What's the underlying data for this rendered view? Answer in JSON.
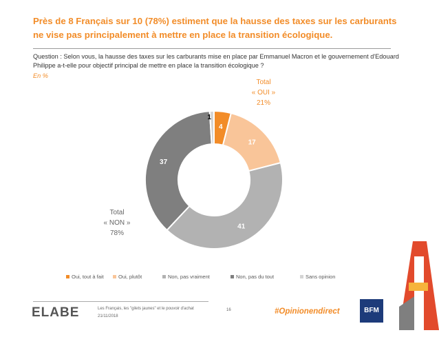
{
  "title": "Près de 8 Français sur 10 (78%) estiment que la hausse des taxes sur les carburants ne vise pas principalement à mettre en place la transition écologique.",
  "question": "Question : Selon vous, la hausse des taxes sur les carburants mise en place par Emmanuel Macron et le gouvernement d'Edouard Philippe a-t-elle pour objectif principal de mettre en place la transition écologique ?",
  "unit": "En %",
  "footer": {
    "logo": "ELABE",
    "study": "Les Français, les \"gilets jaunes\" et le pouvoir d'achat",
    "date": "21/11/2018",
    "page": "16",
    "hashtag": "#Opinionendirect",
    "partner": "BFM TV"
  },
  "chart_data": {
    "type": "pie",
    "subtype": "donut",
    "categories": [
      "Oui, tout à fait",
      "Oui, plutôt",
      "Non, pas vraiment",
      "Non, pas du tout",
      "Sans opinion"
    ],
    "values": [
      4,
      17,
      41,
      37,
      1
    ],
    "colors": [
      "#F28C28",
      "#F9C599",
      "#B2B2B2",
      "#7F7F7F",
      "#D4D4D4"
    ],
    "label_colors": [
      "#ffffff",
      "#ffffff",
      "#ffffff",
      "#ffffff",
      "#000000"
    ],
    "totals": [
      {
        "title": "Total",
        "name": "« OUI »",
        "value": "21%",
        "color": "#F28C28"
      },
      {
        "title": "Total",
        "name": "« NON »",
        "value": "78%",
        "color": "#666666"
      }
    ],
    "legend_position": "bottom"
  }
}
